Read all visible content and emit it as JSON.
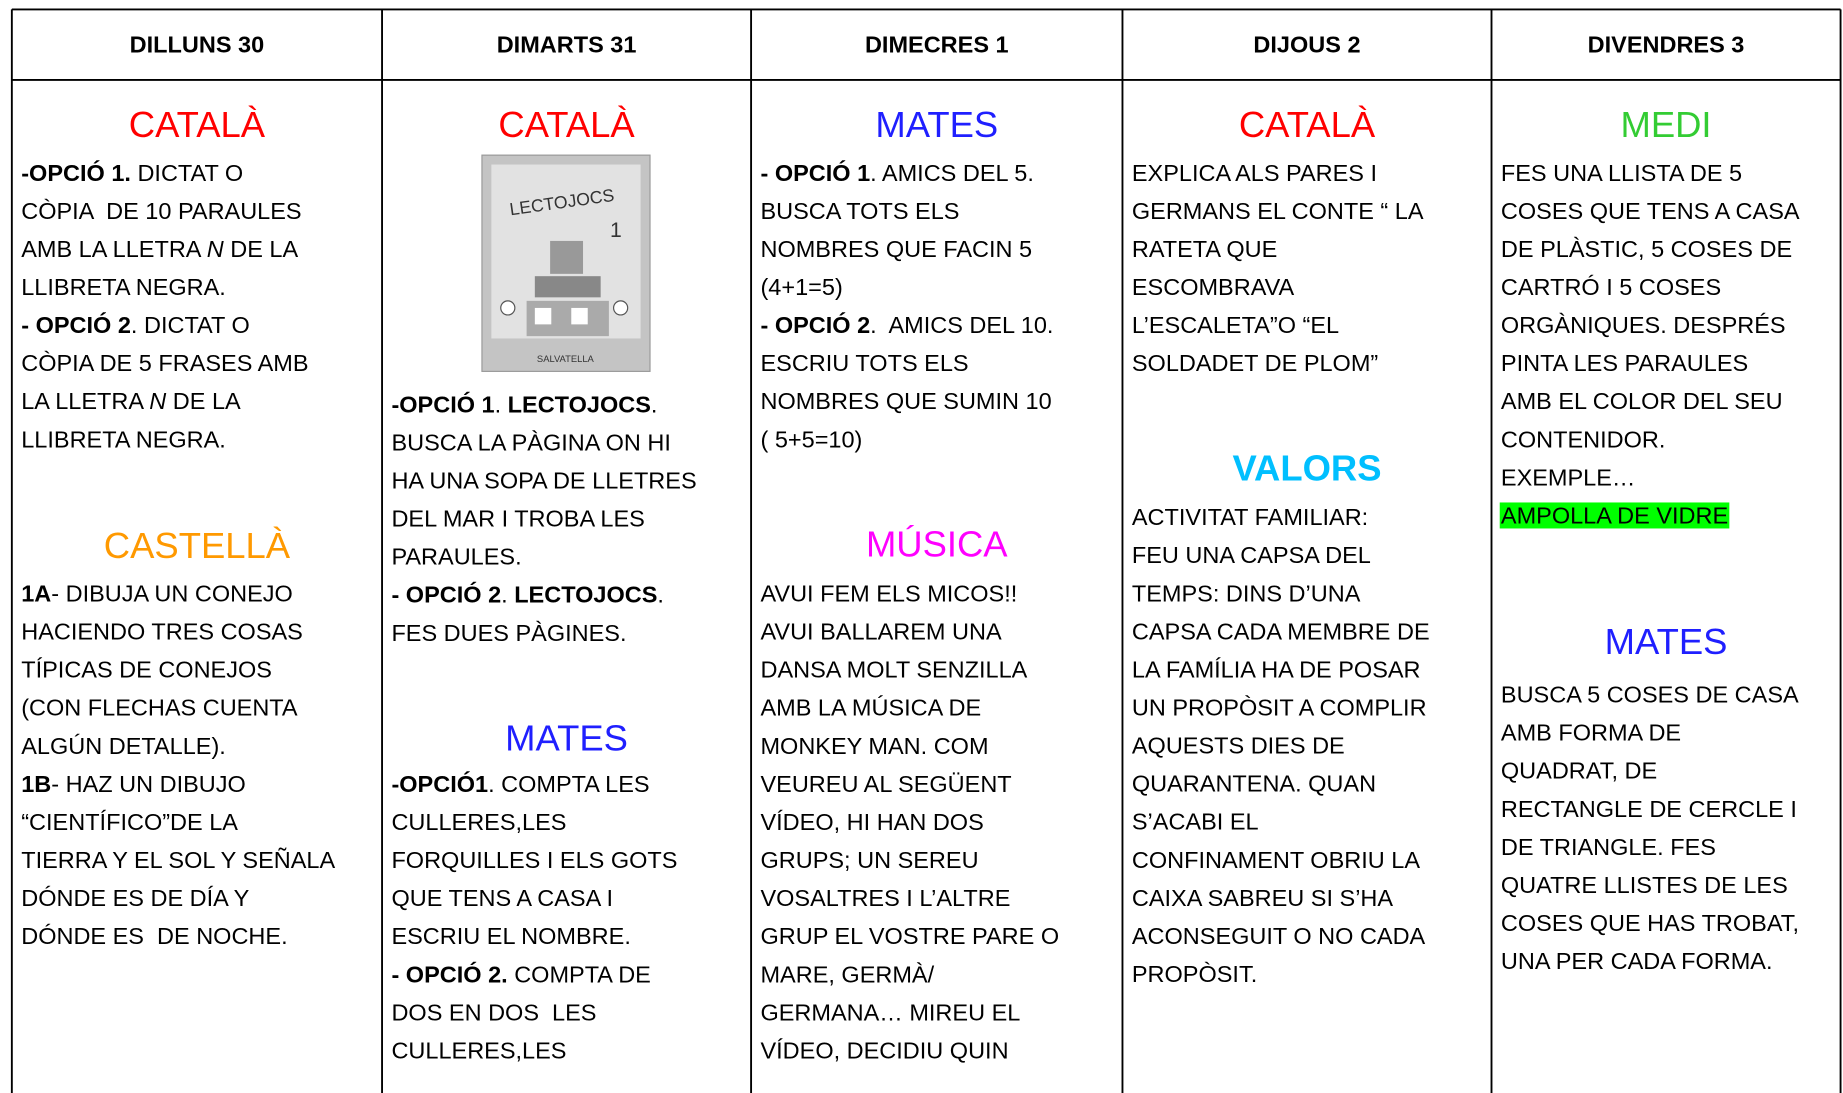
{
  "columns": [
    {
      "header": "DILLUNS 30",
      "sections": [
        {
          "subject": "CATALÀ",
          "color": "#ff0000",
          "lines": [
            [
              {
                "text": "-OPCIÓ 1.",
                "bold": true
              },
              " DICTAT O"
            ],
            [
              "CÒPIA  DE 10 PARAULES"
            ],
            [
              "AMB LA LLETRA ",
              {
                "text": "N",
                "italic": true
              },
              " DE LA"
            ],
            [
              "LLIBRETA NEGRA."
            ],
            [
              {
                "text": "- OPCIÓ 2",
                "bold": true
              },
              ". DICTAT O"
            ],
            [
              "CÒPIA DE 5 FRASES AMB"
            ],
            [
              "LA LLETRA ",
              {
                "text": "N",
                "italic": true
              },
              " DE LA"
            ],
            [
              "LLIBRETA NEGRA."
            ]
          ]
        },
        {
          "subject": "CASTELLÀ",
          "color": "#ff9900",
          "lines": [
            [
              {
                "text": "1A",
                "bold": true
              },
              "- DIBUJA UN CONEJO"
            ],
            [
              "HACIENDO TRES COSAS"
            ],
            [
              "TÍPICAS DE CONEJOS"
            ],
            [
              "(CON FLECHAS CUENTA"
            ],
            [
              "ALGÚN DETALLE)."
            ],
            [
              {
                "text": "1B",
                "bold": true
              },
              "- HAZ UN DIBUJO"
            ],
            [
              "“CIENTÍFICO”DE LA"
            ],
            [
              "TIERRA Y EL SOL Y SEÑALA"
            ],
            [
              "DÓNDE ES DE DÍA Y"
            ],
            [
              "DÓNDE ES  DE NOCHE."
            ]
          ]
        }
      ]
    },
    {
      "header": "DIMARTS 31",
      "sections": [
        {
          "subject": "CATALÀ",
          "color": "#ff0000",
          "image": {
            "title": "LECTOJOCS",
            "number": "1",
            "publisher": "SALVATELLA"
          },
          "lines": [
            [
              {
                "text": "-OPCIÓ 1",
                "bold": true
              },
              ". ",
              {
                "text": "LECTOJOCS",
                "bold": true
              },
              "."
            ],
            [
              "BUSCA LA PÀGINA ON HI"
            ],
            [
              "HA UNA SOPA DE LLETRES"
            ],
            [
              "DEL MAR I TROBA LES"
            ],
            [
              "PARAULES."
            ],
            [
              {
                "text": "- OPCIÓ 2",
                "bold": true
              },
              ". ",
              {
                "text": "LECTOJOCS",
                "bold": true
              },
              "."
            ],
            [
              "FES DUES PÀGINES."
            ]
          ]
        },
        {
          "subject": "MATES",
          "color": "#1f1fff",
          "lines": [
            [
              {
                "text": "-OPCIÓ1",
                "bold": true
              },
              ". COMPTA LES"
            ],
            [
              "CULLERES,LES"
            ],
            [
              "FORQUILLES I ELS GOTS"
            ],
            [
              "QUE TENS A CASA I"
            ],
            [
              "ESCRIU EL NOMBRE."
            ],
            [
              {
                "text": "- OPCIÓ 2.",
                "bold": true
              },
              " COMPTA DE"
            ],
            [
              "DOS EN DOS  LES"
            ],
            [
              "CULLERES,LES"
            ]
          ]
        }
      ]
    },
    {
      "header": "DIMECRES 1",
      "sections": [
        {
          "subject": "MATES",
          "color": "#1f1fff",
          "lines": [
            [
              {
                "text": "- OPCIÓ 1",
                "bold": true
              },
              ". AMICS DEL 5."
            ],
            [
              "BUSCA TOTS ELS"
            ],
            [
              "NOMBRES QUE FACIN 5"
            ],
            [
              "(4+1=5)"
            ],
            [
              {
                "text": "- OPCIÓ 2",
                "bold": true
              },
              ".  AMICS DEL 10."
            ],
            [
              "ESCRIU TOTS ELS"
            ],
            [
              "NOMBRES QUE SUMIN 10"
            ],
            [
              "( 5+5=10)"
            ]
          ]
        },
        {
          "subject": "MÚSICA",
          "color": "#ff00ff",
          "lines": [
            [
              "AVUI FEM ELS MICOS!!"
            ],
            [
              "AVUI BALLAREM UNA"
            ],
            [
              "DANSA MOLT SENZILLA"
            ],
            [
              "AMB LA MÚSICA DE"
            ],
            [
              "MONKEY MAN. COM"
            ],
            [
              "VEUREU AL SEGÜENT"
            ],
            [
              "VÍDEO, HI HAN DOS"
            ],
            [
              "GRUPS; UN SEREU"
            ],
            [
              "VOSALTRES I L’ALTRE"
            ],
            [
              "GRUP EL VOSTRE PARE O"
            ],
            [
              "MARE, GERMÀ/"
            ],
            [
              "GERMANA… MIREU EL"
            ],
            [
              "VÍDEO, DECIDIU QUIN"
            ]
          ]
        }
      ]
    },
    {
      "header": "DIJOUS 2",
      "sections": [
        {
          "subject": "CATALÀ",
          "color": "#ff0000",
          "lines": [
            [
              "EXPLICA ALS PARES I"
            ],
            [
              "GERMANS EL CONTE “ LA"
            ],
            [
              "RATETA QUE"
            ],
            [
              "ESCOMBRAVA"
            ],
            [
              "L’ESCALETA”O “EL"
            ],
            [
              "SOLDADET DE PLOM”"
            ]
          ]
        },
        {
          "subject": "VALORS",
          "color": "#00bfff",
          "bold": true,
          "lines": [
            [
              "ACTIVITAT FAMILIAR:"
            ],
            [
              "FEU UNA CAPSA DEL"
            ],
            [
              "TEMPS: DINS D’UNA"
            ],
            [
              "CAPSA CADA MEMBRE DE"
            ],
            [
              "LA FAMÍLIA HA DE POSAR"
            ],
            [
              "UN PROPÒSIT A COMPLIR"
            ],
            [
              "AQUESTS DIES DE"
            ],
            [
              "QUARANTENA. QUAN"
            ],
            [
              "S’ACABI EL"
            ],
            [
              "CONFINAMENT OBRIU LA"
            ],
            [
              "CAIXA SABREU SI S’HA"
            ],
            [
              "ACONSEGUIT O NO CADA"
            ],
            [
              "PROPÒSIT."
            ]
          ]
        }
      ]
    },
    {
      "header": "DIVENDRES 3",
      "sections": [
        {
          "subject": "MEDI",
          "color": "#33cc33",
          "lines": [
            [
              "FES UNA LLISTA DE 5"
            ],
            [
              "COSES QUE TENS A CASA"
            ],
            [
              "DE PLÀSTIC, 5 COSES DE"
            ],
            [
              "CARTRÓ I 5 COSES"
            ],
            [
              "ORGÀNIQUES. DESPRÉS"
            ],
            [
              "PINTA LES PARAULES"
            ],
            [
              "AMB EL COLOR DEL SEU"
            ],
            [
              "CONTENIDOR."
            ],
            [
              "EXEMPLE…"
            ],
            [
              {
                "text": "AMPOLLA DE VIDRE",
                "highlight": "#00ff00"
              }
            ]
          ]
        },
        {
          "subject": "MATES",
          "color": "#1f1fff",
          "lines": [
            [
              "BUSCA 5 COSES DE CASA"
            ],
            [
              "AMB FORMA DE"
            ],
            [
              "QUADRAT, DE"
            ],
            [
              "RECTANGLE DE CERCLE I"
            ],
            [
              "DE TRIANGLE. FES"
            ],
            [
              "QUATRE LLISTES DE LES"
            ],
            [
              "COSES QUE HAS TROBAT,"
            ],
            [
              "UNA PER CADA FORMA."
            ]
          ]
        }
      ]
    }
  ]
}
